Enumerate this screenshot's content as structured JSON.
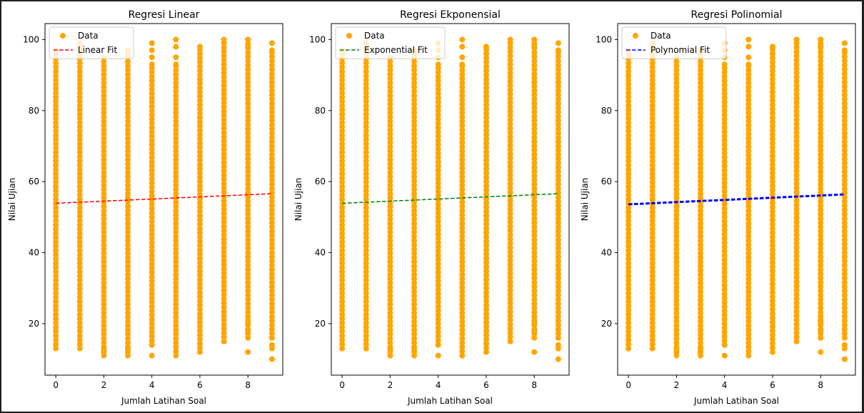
{
  "chart_data": [
    {
      "type": "scatter",
      "title": "Regresi Linear",
      "xlabel": "Jumlah Latihan Soal",
      "ylabel": "Nilai Ujian",
      "xlim": [
        -0.45,
        9.45
      ],
      "ylim": [
        5.5,
        104.5
      ],
      "xticks": [
        0,
        2,
        4,
        6,
        8
      ],
      "yticks": [
        20,
        40,
        60,
        80,
        100
      ],
      "legend_position": "top-left",
      "series": [
        {
          "name": "Data",
          "kind": "scatter",
          "color": "#ffa500",
          "points_per_x": [
            {
              "x": 0,
              "y_min": 13,
              "y_max": 97,
              "outliers": []
            },
            {
              "x": 1,
              "y_min": 13,
              "y_max": 99,
              "outliers": []
            },
            {
              "x": 2,
              "y_min": 11,
              "y_max": 95,
              "outliers": [
                12,
                13
              ]
            },
            {
              "x": 3,
              "y_min": 11,
              "y_max": 97,
              "outliers": [
                12,
                13
              ]
            },
            {
              "x": 4,
              "y_min": 14,
              "y_max": 93,
              "outliers": [
                11,
                95,
                97,
                99
              ]
            },
            {
              "x": 5,
              "y_min": 11,
              "y_max": 93,
              "outliers": [
                95,
                98,
                100
              ]
            },
            {
              "x": 6,
              "y_min": 12,
              "y_max": 98,
              "outliers": []
            },
            {
              "x": 7,
              "y_min": 15,
              "y_max": 100,
              "outliers": []
            },
            {
              "x": 8,
              "y_min": 16,
              "y_max": 100,
              "outliers": [
                12,
                18,
                20,
                21,
                98
              ]
            },
            {
              "x": 9,
              "y_min": 16,
              "y_max": 97,
              "outliers": [
                10,
                13,
                14,
                99
              ]
            }
          ]
        },
        {
          "name": "Linear Fit",
          "kind": "line",
          "color": "#ff0000",
          "dash": "dashed",
          "width": 1.5,
          "x": [
            0,
            9
          ],
          "y": [
            53.9,
            56.6
          ]
        }
      ]
    },
    {
      "type": "scatter",
      "title": "Regresi Ekponensial",
      "xlabel": "Jumlah Latihan Soal",
      "ylabel": "Nilai Ujian",
      "xlim": [
        -0.45,
        9.45
      ],
      "ylim": [
        5.5,
        104.5
      ],
      "xticks": [
        0,
        2,
        4,
        6,
        8
      ],
      "yticks": [
        20,
        40,
        60,
        80,
        100
      ],
      "legend_position": "top-left",
      "series": [
        {
          "name": "Data",
          "kind": "scatter",
          "color": "#ffa500",
          "points_per_x": [
            {
              "x": 0,
              "y_min": 13,
              "y_max": 97,
              "outliers": []
            },
            {
              "x": 1,
              "y_min": 13,
              "y_max": 99,
              "outliers": []
            },
            {
              "x": 2,
              "y_min": 11,
              "y_max": 95,
              "outliers": [
                12,
                13
              ]
            },
            {
              "x": 3,
              "y_min": 11,
              "y_max": 97,
              "outliers": [
                12,
                13
              ]
            },
            {
              "x": 4,
              "y_min": 14,
              "y_max": 93,
              "outliers": [
                11,
                95,
                97,
                99
              ]
            },
            {
              "x": 5,
              "y_min": 11,
              "y_max": 93,
              "outliers": [
                95,
                98,
                100
              ]
            },
            {
              "x": 6,
              "y_min": 12,
              "y_max": 98,
              "outliers": []
            },
            {
              "x": 7,
              "y_min": 15,
              "y_max": 100,
              "outliers": []
            },
            {
              "x": 8,
              "y_min": 16,
              "y_max": 100,
              "outliers": [
                12,
                18,
                20,
                21,
                98
              ]
            },
            {
              "x": 9,
              "y_min": 16,
              "y_max": 97,
              "outliers": [
                10,
                13,
                14,
                99
              ]
            }
          ]
        },
        {
          "name": "Exponential Fit",
          "kind": "line",
          "color": "#008000",
          "dash": "dashed",
          "width": 1.5,
          "x": [
            0,
            9
          ],
          "y": [
            53.9,
            56.6
          ]
        }
      ]
    },
    {
      "type": "scatter",
      "title": "Regresi Polinomial",
      "xlabel": "Jumlah Latihan Soal",
      "ylabel": "Nilai Ujian",
      "xlim": [
        -0.45,
        9.45
      ],
      "ylim": [
        5.5,
        104.5
      ],
      "xticks": [
        0,
        2,
        4,
        6,
        8
      ],
      "yticks": [
        20,
        40,
        60,
        80,
        100
      ],
      "legend_position": "top-left",
      "series": [
        {
          "name": "Data",
          "kind": "scatter",
          "color": "#ffa500",
          "points_per_x": [
            {
              "x": 0,
              "y_min": 13,
              "y_max": 97,
              "outliers": []
            },
            {
              "x": 1,
              "y_min": 13,
              "y_max": 99,
              "outliers": []
            },
            {
              "x": 2,
              "y_min": 11,
              "y_max": 95,
              "outliers": [
                12,
                13
              ]
            },
            {
              "x": 3,
              "y_min": 11,
              "y_max": 97,
              "outliers": [
                12,
                13
              ]
            },
            {
              "x": 4,
              "y_min": 14,
              "y_max": 93,
              "outliers": [
                11,
                95,
                97,
                99
              ]
            },
            {
              "x": 5,
              "y_min": 11,
              "y_max": 93,
              "outliers": [
                95,
                98,
                100
              ]
            },
            {
              "x": 6,
              "y_min": 12,
              "y_max": 98,
              "outliers": []
            },
            {
              "x": 7,
              "y_min": 15,
              "y_max": 100,
              "outliers": []
            },
            {
              "x": 8,
              "y_min": 16,
              "y_max": 100,
              "outliers": [
                12,
                18,
                20,
                21,
                98
              ]
            },
            {
              "x": 9,
              "y_min": 16,
              "y_max": 97,
              "outliers": [
                10,
                13,
                14,
                99
              ]
            }
          ]
        },
        {
          "name": "Polynomial Fit",
          "kind": "line",
          "color": "#0000ff",
          "dash": "dashed",
          "width": 3,
          "x": [
            0,
            9
          ],
          "y": [
            53.6,
            56.4
          ]
        }
      ]
    }
  ]
}
